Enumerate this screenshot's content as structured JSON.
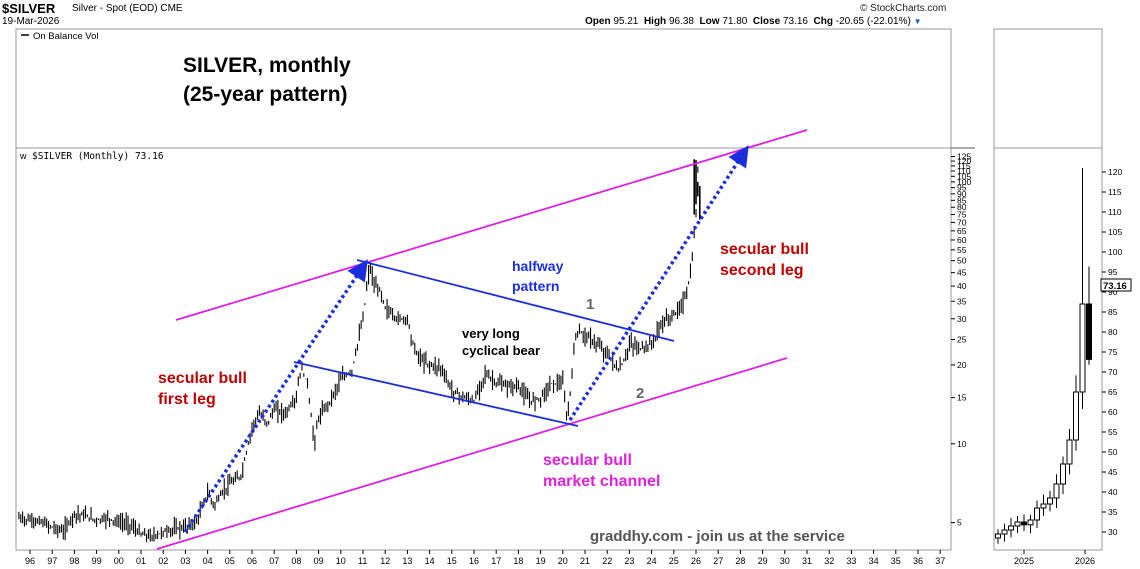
{
  "header": {
    "symbol": "$SILVER",
    "description": "Silver - Spot (EOD)",
    "exchange": "CME",
    "date": "19-Mar-2026",
    "open_label": "Open",
    "open": "95.21",
    "high_label": "High",
    "high": "96.38",
    "low_label": "Low",
    "low": "71.80",
    "close_label": "Close",
    "close": "73.16",
    "chg_label": "Chg",
    "chg": "-20.65 (-22.01%)",
    "credit": "© StockCharts.com"
  },
  "upper_panel": {
    "indicator_label": "On Balance Vol",
    "title_line1": "SILVER, monthly",
    "title_line2": "(25-year pattern)"
  },
  "price_panel": {
    "series_label": "$SILVER (Monthly) 73.16",
    "right_axis_ticks": [
      "125",
      "120",
      "115",
      "110",
      "105",
      "100",
      "95",
      "90",
      "85",
      "80",
      "75",
      "70",
      "65",
      "60",
      "55",
      "50",
      "45",
      "40",
      "35",
      "30",
      "25",
      "20",
      "15",
      "10",
      "5"
    ],
    "x_axis_ticks": [
      "96",
      "97",
      "98",
      "99",
      "00",
      "01",
      "02",
      "03",
      "04",
      "05",
      "06",
      "07",
      "08",
      "09",
      "10",
      "11",
      "12",
      "13",
      "14",
      "15",
      "16",
      "17",
      "18",
      "19",
      "20",
      "21",
      "22",
      "23",
      "24",
      "25",
      "26",
      "27",
      "28",
      "29",
      "30",
      "31",
      "32",
      "33",
      "34",
      "35",
      "36",
      "37"
    ],
    "annotations": {
      "secular_bull_first_leg": [
        "secular bull",
        "first leg"
      ],
      "halfway_pattern": [
        "halfway",
        "pattern"
      ],
      "very_long_cyclical_bear": [
        "very long",
        "cyclical bear"
      ],
      "secular_bull_second_leg": [
        "secular bull",
        "second leg"
      ],
      "secular_bull_market_channel": [
        "secular bull",
        "market channel"
      ],
      "marker_1": "1",
      "marker_2": "2",
      "watermark": "graddhy.com - join us at the service"
    }
  },
  "zoom_panel": {
    "right_axis_ticks": [
      "120",
      "115",
      "110",
      "105",
      "100",
      "95",
      "90",
      "85",
      "80",
      "75",
      "70",
      "65",
      "60",
      "55",
      "50",
      "45",
      "40",
      "35",
      "30"
    ],
    "x_axis_ticks": [
      "2025",
      "2026"
    ],
    "last_price_badge": "73.16"
  },
  "colors": {
    "channel": "#e020e0",
    "pattern_lines": "#1a2ee0",
    "arrows": "#1a2ee0",
    "red_annotation": "#c00000",
    "magenta_annotation": "#e020e0",
    "price": "#000000"
  },
  "chart_data": {
    "type": "line",
    "title": "SILVER, monthly",
    "subtitle": "(25-year pattern)",
    "scale": "log",
    "ylim": [
      4,
      130
    ],
    "xlim": [
      1995.5,
      2037
    ],
    "x": [
      1995.5,
      1996,
      1996.5,
      1997,
      1997.5,
      1998,
      1998.5,
      1999,
      1999.5,
      2000,
      2000.5,
      2001,
      2001.5,
      2002,
      2002.5,
      2003,
      2003.5,
      2004,
      2004.3,
      2004.7,
      2005,
      2005.5,
      2006,
      2006.3,
      2006.7,
      2007,
      2007.5,
      2008,
      2008.2,
      2008.5,
      2008.8,
      2009,
      2009.5,
      2010,
      2010.5,
      2011,
      2011.3,
      2011.5,
      2011.8,
      2012,
      2012.5,
      2013,
      2013.3,
      2013.6,
      2014,
      2014.5,
      2015,
      2015.5,
      2016,
      2016.5,
      2017,
      2017.5,
      2018,
      2018.5,
      2019,
      2019.5,
      2020,
      2020.2,
      2020.4,
      2020.6,
      2021,
      2021.5,
      2022,
      2022.5,
      2022.8,
      2023,
      2023.5,
      2024,
      2024.5,
      2025,
      2025.3,
      2025.6,
      2025.8,
      2026,
      2026.1,
      2026.2
    ],
    "y": [
      5.2,
      5.1,
      5.0,
      4.8,
      4.6,
      5.4,
      5.3,
      5.1,
      5.2,
      5.0,
      4.9,
      4.5,
      4.4,
      4.6,
      4.7,
      4.8,
      5.0,
      6.5,
      5.8,
      6.6,
      7.0,
      7.5,
      11.5,
      13.0,
      12.0,
      13.5,
      13.0,
      15.0,
      19.5,
      17.0,
      10.0,
      12.5,
      14.5,
      17.5,
      19.0,
      30.0,
      48.0,
      40.0,
      38.0,
      33.0,
      30.0,
      30.0,
      23.0,
      21.0,
      20.0,
      19.5,
      16.0,
      15.0,
      14.5,
      18.5,
      17.0,
      16.5,
      16.5,
      14.5,
      15.0,
      17.0,
      17.0,
      12.0,
      18.0,
      27.0,
      26.0,
      24.0,
      22.0,
      19.0,
      21.0,
      24.0,
      23.0,
      24.0,
      29.0,
      31.0,
      33.0,
      38.0,
      47.0,
      75.0,
      121.0,
      73.16
    ],
    "series": [
      {
        "name": "$SILVER (Monthly)",
        "last": 73.16
      },
      {
        "name": "On Balance Vol"
      }
    ],
    "zoom_x": [
      "2024.8",
      "2024.9",
      "2025.0",
      "2025.1",
      "2025.2",
      "2025.3",
      "2025.4",
      "2025.5",
      "2025.6",
      "2025.7",
      "2025.8",
      "2025.9",
      "2026.0",
      "2026.1",
      "2026.2"
    ],
    "zoom_close": [
      29.5,
      30.5,
      31.5,
      32.5,
      31.8,
      33.0,
      36.0,
      37.0,
      38.5,
      42.0,
      47.0,
      53.0,
      65.0,
      87.0,
      73.16
    ]
  }
}
